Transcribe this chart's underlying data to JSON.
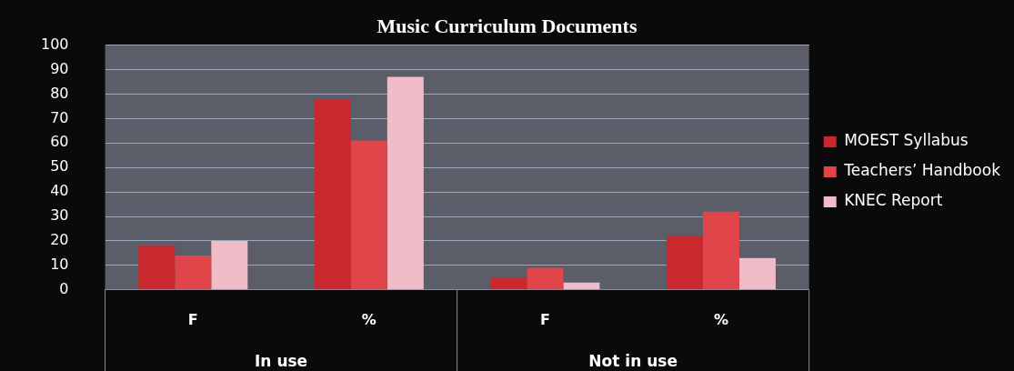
{
  "chart_data": {
    "type": "bar",
    "title": "Music Curriculum Documents",
    "categories": [
      "F",
      "%",
      "F",
      "%"
    ],
    "series": [
      {
        "name": "MOEST Syllabus",
        "color": "#c8282e",
        "values": [
          18,
          78,
          5,
          22
        ]
      },
      {
        "name": "Teachers’ Handbook",
        "color": "#e0454a",
        "values": [
          14,
          61,
          9,
          32
        ]
      },
      {
        "name": "KNEC Report",
        "color": "#f0bcc8",
        "values": [
          20,
          87,
          3,
          13
        ]
      }
    ],
    "annotations": [
      "In use",
      "Not in use"
    ],
    "ylim": [
      0,
      100
    ],
    "yticks": [
      0,
      10,
      20,
      30,
      40,
      50,
      60,
      70,
      80,
      90,
      100
    ],
    "grid": "y",
    "legend": "right"
  }
}
